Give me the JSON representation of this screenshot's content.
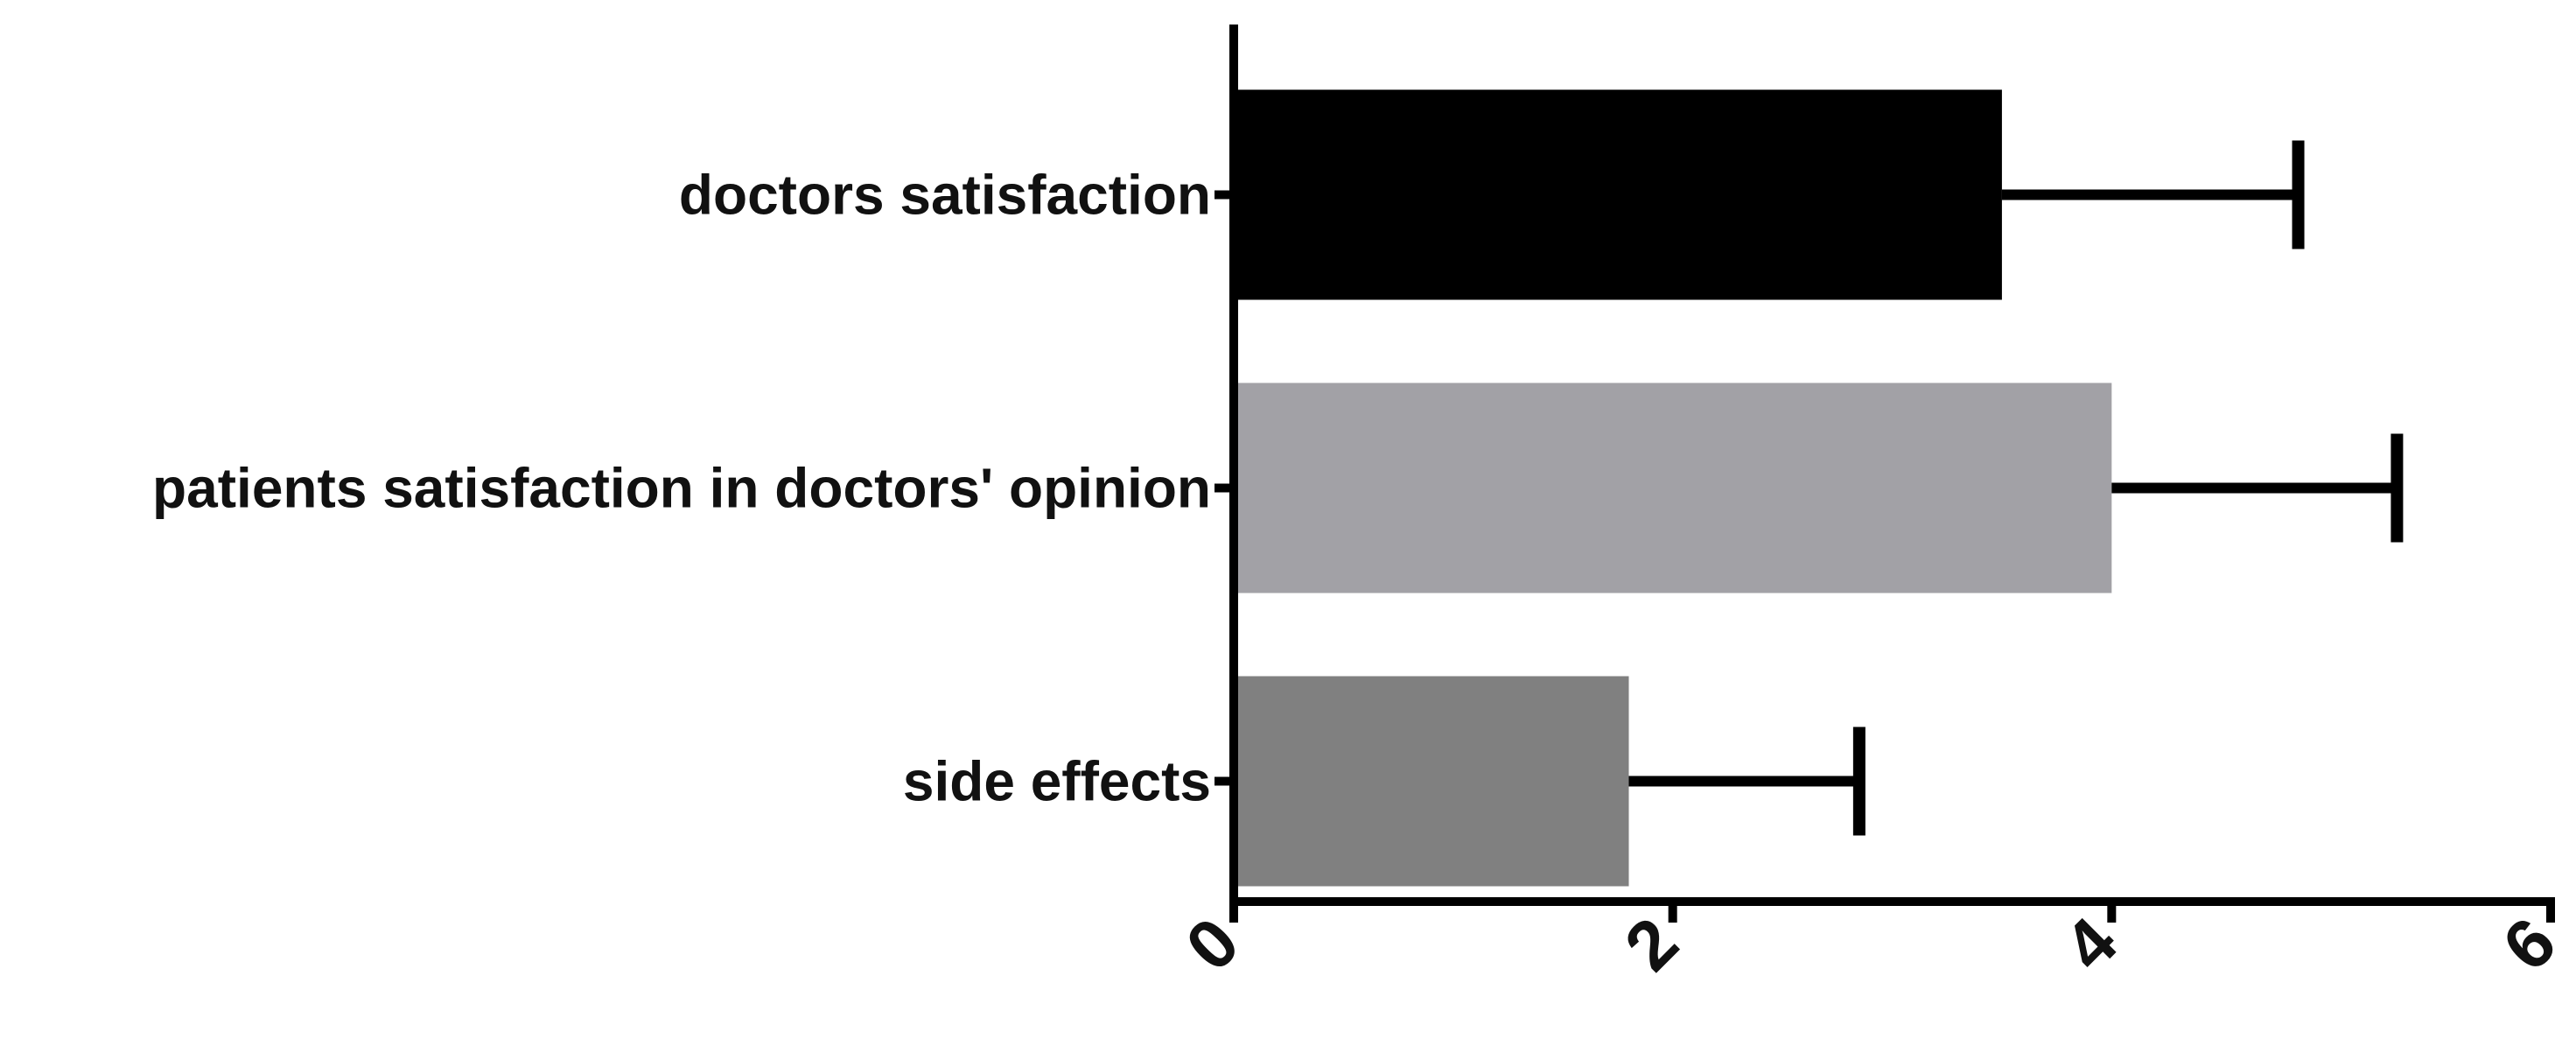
{
  "chart_data": {
    "type": "bar",
    "orientation": "horizontal",
    "categories": [
      "doctors satisfaction",
      "patients satisfaction in doctors' opinion",
      "side effects"
    ],
    "values": [
      3.5,
      4.0,
      1.8
    ],
    "error": [
      1.35,
      1.3,
      1.05
    ],
    "colors": [
      "#000000",
      "#a2a1a6",
      "#808080"
    ],
    "xlim": [
      0,
      6
    ],
    "xticks": [
      "0",
      "2",
      "4",
      "6"
    ],
    "title": "",
    "xlabel": "",
    "ylabel": "",
    "grid": false,
    "legend": "none"
  }
}
